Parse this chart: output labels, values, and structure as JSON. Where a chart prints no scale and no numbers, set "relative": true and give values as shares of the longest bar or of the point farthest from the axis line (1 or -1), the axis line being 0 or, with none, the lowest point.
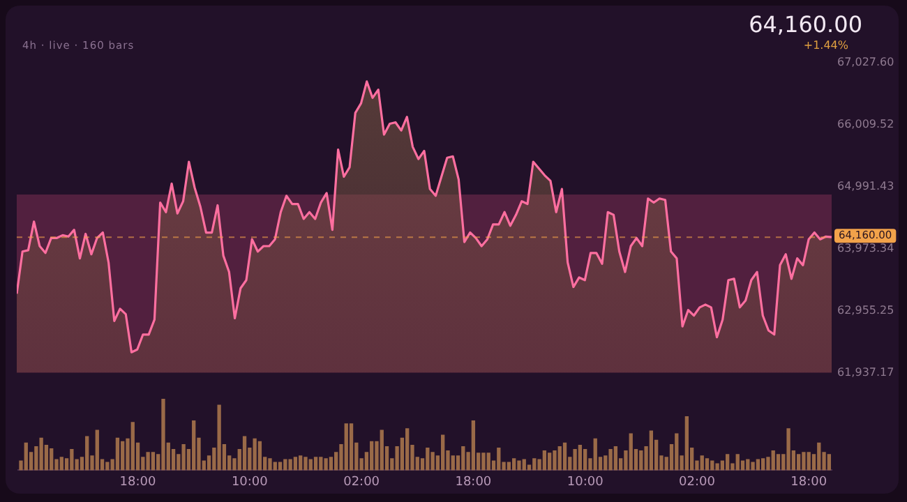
{
  "chart_data": [
    {
      "type": "area",
      "subtitle": "4h · live · 160 bars",
      "annotations": [
        "64,160.00",
        "+1.44%"
      ],
      "categories": [
        null,
        null,
        null,
        null,
        null,
        null,
        null,
        null,
        null,
        null,
        null,
        null,
        null,
        null,
        null,
        null,
        null,
        null,
        null,
        null,
        null,
        null,
        null,
        null,
        null,
        null,
        null,
        null,
        null,
        null,
        null,
        null,
        null,
        null,
        null,
        null,
        null,
        null,
        null,
        null,
        null,
        null,
        null,
        null,
        null,
        null,
        null,
        null,
        null,
        null,
        null,
        null,
        null,
        null,
        null,
        null,
        null,
        null,
        null,
        null,
        null,
        null,
        null,
        null,
        null,
        null,
        null,
        null,
        null,
        null,
        null,
        null,
        null,
        null,
        null,
        null,
        null,
        null,
        null,
        null,
        null,
        null,
        null,
        null,
        null,
        null,
        null,
        null,
        null,
        null,
        null,
        null,
        null,
        null,
        null,
        null,
        null,
        null,
        null,
        null,
        null,
        null,
        null,
        null,
        null,
        null,
        null,
        null,
        null,
        null,
        null,
        null,
        null,
        null,
        null,
        null,
        null,
        null,
        null,
        null,
        null,
        null,
        null,
        null,
        null,
        null,
        null,
        null,
        null,
        null,
        null,
        null,
        null,
        null,
        null,
        null,
        null,
        null,
        null,
        null,
        null,
        null,
        null
      ],
      "series": [
        {
          "color": "#ff6fa0",
          "values": [
            63231,
            63924,
            63946,
            64415,
            64013,
            63901,
            64147,
            64147,
            64192,
            64170,
            64281,
            63812,
            64214,
            63879,
            64147,
            64236,
            63745,
            62785,
            62985,
            62896,
            62271,
            62316,
            62562,
            62562,
            62807,
            64728,
            64571,
            65040,
            64549,
            64750,
            65397,
            64973,
            64660,
            64236,
            64236,
            64683,
            63857,
            63589,
            62829,
            63321,
            63455,
            64125,
            63924,
            64013,
            64013,
            64125,
            64571,
            64839,
            64705,
            64705,
            64460,
            64571,
            64460,
            64728,
            64884,
            64281,
            65598,
            65152,
            65308,
            66201,
            66358,
            66715,
            66447,
            66581,
            65844,
            66022,
            66045,
            65911,
            66134,
            65643,
            65442,
            65576,
            64951,
            64839,
            65152,
            65464,
            65486,
            65107,
            64080,
            64236,
            64147,
            64013,
            64125,
            64370,
            64370,
            64571,
            64348,
            64527,
            64750,
            64705,
            65397,
            65286,
            65174,
            65085,
            64571,
            64951,
            63745,
            63343,
            63499,
            63455,
            63901,
            63901,
            63723,
            64571,
            64527,
            63924,
            63589,
            64013,
            64147,
            64013,
            64794,
            64728,
            64794,
            64772,
            63924,
            63812,
            62695,
            62963,
            62874,
            63008,
            63053,
            63008,
            62517,
            62807,
            63455,
            63477,
            63008,
            63120,
            63455,
            63589,
            62874,
            62628,
            62562,
            63700,
            63879,
            63477,
            63812,
            63700,
            64125,
            64236,
            64125,
            64170,
            64160
          ]
        }
      ],
      "ylim": [
        61937.17,
        67027.6
      ],
      "yticks": [
        {
          "value": 61937.17,
          "label": "61,937.17"
        },
        {
          "value": 62955.25,
          "label": "62,955.25"
        },
        {
          "value": 63973.34,
          "label": "63,973.34"
        },
        {
          "value": 64991.43,
          "label": "64,991.43"
        },
        {
          "value": 66009.52,
          "label": "66,009.52"
        },
        {
          "value": 67027.6,
          "label": "67,027.60"
        }
      ],
      "bands": [
        {
          "axis": "y",
          "from": 61937.17,
          "to": 64860,
          "color": "#52203f"
        }
      ],
      "ref_lines": [
        {
          "axis": "y",
          "value": 64160,
          "label": "64,160.00",
          "color": "#f2a24a",
          "line_style": "dashed"
        }
      ],
      "tick_labels": "y",
      "marker": "none"
    },
    {
      "type": "bar",
      "relative": true,
      "color": "#9a6a48",
      "categories": [
        null,
        null,
        null,
        null,
        null,
        null,
        null,
        null,
        null,
        null,
        null,
        null,
        null,
        null,
        null,
        null,
        null,
        null,
        null,
        null,
        null,
        null,
        null,
        "18:00",
        null,
        null,
        null,
        null,
        null,
        null,
        null,
        null,
        null,
        null,
        null,
        null,
        null,
        null,
        null,
        null,
        null,
        null,
        null,
        null,
        null,
        "10:00",
        null,
        null,
        null,
        null,
        null,
        null,
        null,
        null,
        null,
        null,
        null,
        null,
        null,
        null,
        null,
        null,
        null,
        null,
        null,
        null,
        null,
        "02:00",
        null,
        null,
        null,
        null,
        null,
        null,
        null,
        null,
        null,
        null,
        null,
        null,
        null,
        null,
        null,
        null,
        null,
        null,
        null,
        null,
        null,
        "18:00",
        null,
        null,
        null,
        null,
        null,
        null,
        null,
        null,
        null,
        null,
        null,
        null,
        null,
        null,
        null,
        null,
        null,
        null,
        null,
        null,
        null,
        "10:00",
        null,
        null,
        null,
        null,
        null,
        null,
        null,
        null,
        null,
        null,
        null,
        null,
        null,
        null,
        null,
        null,
        null,
        null,
        null,
        null,
        null,
        "02:00",
        null,
        null,
        null,
        null,
        null,
        null,
        null,
        null,
        null,
        null,
        null,
        null,
        null,
        null,
        null,
        null,
        null,
        null,
        null,
        null,
        null,
        "18:00",
        null,
        null,
        null,
        null
      ],
      "values": [
        0.13,
        0.38,
        0.25,
        0.33,
        0.45,
        0.35,
        0.3,
        0.15,
        0.18,
        0.16,
        0.29,
        0.15,
        0.18,
        0.47,
        0.2,
        0.56,
        0.15,
        0.11,
        0.15,
        0.45,
        0.4,
        0.44,
        0.67,
        0.38,
        0.18,
        0.25,
        0.25,
        0.22,
        1,
        0.38,
        0.29,
        0.22,
        0.36,
        0.29,
        0.69,
        0.45,
        0.13,
        0.2,
        0.31,
        0.91,
        0.36,
        0.2,
        0.16,
        0.29,
        0.47,
        0.31,
        0.44,
        0.4,
        0.18,
        0.16,
        0.11,
        0.11,
        0.15,
        0.15,
        0.18,
        0.2,
        0.18,
        0.15,
        0.18,
        0.18,
        0.16,
        0.18,
        0.25,
        0.36,
        0.65,
        0.65,
        0.38,
        0.16,
        0.25,
        0.4,
        0.4,
        0.56,
        0.33,
        0.16,
        0.33,
        0.45,
        0.58,
        0.35,
        0.18,
        0.16,
        0.31,
        0.25,
        0.2,
        0.49,
        0.27,
        0.2,
        0.2,
        0.33,
        0.25,
        0.69,
        0.24,
        0.24,
        0.24,
        0.13,
        0.31,
        0.11,
        0.11,
        0.16,
        0.13,
        0.15,
        0.07,
        0.16,
        0.15,
        0.27,
        0.24,
        0.27,
        0.33,
        0.38,
        0.18,
        0.29,
        0.35,
        0.29,
        0.16,
        0.44,
        0.18,
        0.2,
        0.29,
        0.33,
        0.16,
        0.27,
        0.51,
        0.29,
        0.27,
        0.33,
        0.55,
        0.42,
        0.2,
        0.18,
        0.36,
        0.51,
        0.2,
        0.75,
        0.31,
        0.13,
        0.2,
        0.16,
        0.13,
        0.09,
        0.13,
        0.22,
        0.09,
        0.22,
        0.13,
        0.15,
        0.11,
        0.15,
        0.16,
        0.18,
        0.27,
        0.22,
        0.22,
        0.58,
        0.27,
        0.22,
        0.25,
        0.25,
        0.22,
        0.38,
        0.25,
        0.22
      ],
      "tick_labels": "x"
    }
  ]
}
